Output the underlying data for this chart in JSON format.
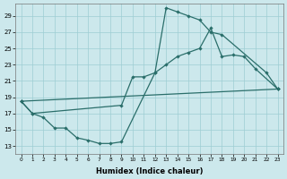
{
  "bg_color": "#cce8ec",
  "grid_color": "#9dcdd3",
  "line_color": "#2a6e6a",
  "xlabel": "Humidex (Indice chaleur)",
  "xlim": [
    -0.5,
    23.5
  ],
  "ylim": [
    12.0,
    30.5
  ],
  "xtick_vals": [
    0,
    1,
    2,
    3,
    4,
    5,
    6,
    7,
    8,
    9,
    10,
    11,
    12,
    13,
    14,
    15,
    16,
    17,
    18,
    19,
    20,
    21,
    22,
    23
  ],
  "ytick_vals": [
    13,
    15,
    17,
    19,
    21,
    23,
    25,
    27,
    29
  ],
  "line1_x": [
    0,
    1,
    2,
    3,
    4,
    5,
    6,
    7,
    8,
    9,
    12,
    13,
    14,
    15,
    16,
    17,
    18,
    22,
    23
  ],
  "line1_y": [
    18.5,
    17.0,
    16.5,
    15.2,
    15.2,
    14.0,
    13.7,
    13.3,
    13.3,
    13.5,
    22.0,
    30.0,
    29.5,
    29.0,
    28.5,
    27.0,
    26.7,
    22.0,
    20.0
  ],
  "line2_x": [
    0,
    1,
    9,
    10,
    11,
    12,
    13,
    14,
    15,
    16,
    17,
    18,
    19,
    20,
    21,
    23
  ],
  "line2_y": [
    18.5,
    17.0,
    18.0,
    21.5,
    21.5,
    22.0,
    23.0,
    24.0,
    24.5,
    25.0,
    27.5,
    24.0,
    24.2,
    24.0,
    22.5,
    20.0
  ],
  "line3_x": [
    0,
    23
  ],
  "line3_y": [
    18.5,
    20.0
  ]
}
